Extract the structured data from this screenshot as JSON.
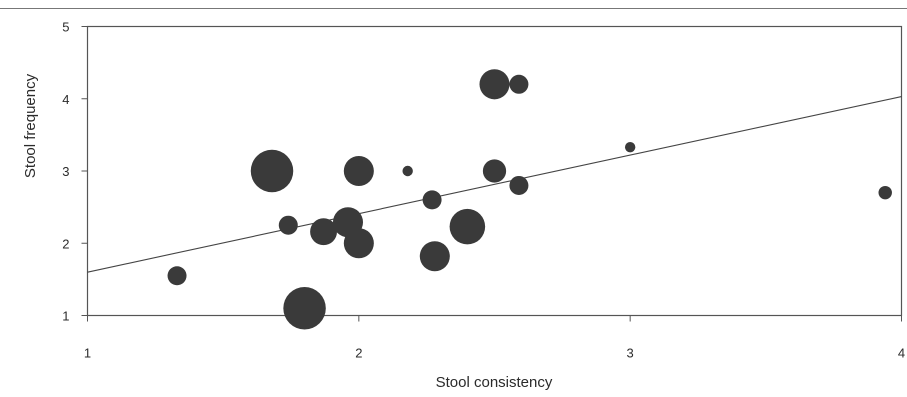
{
  "chart_data": {
    "type": "scatter",
    "subtype": "bubble",
    "xlabel": "Stool consistency",
    "ylabel": "Stool frequency",
    "xlim": [
      1,
      4
    ],
    "ylim": [
      1,
      5
    ],
    "x_ticks": [
      "1",
      "2",
      "3",
      "4"
    ],
    "y_ticks": [
      "1",
      "2",
      "3",
      "4",
      "5"
    ],
    "grid": false,
    "legend": "none",
    "colors": {
      "points": "#3a3a3a",
      "trendline": "#444444",
      "frame": "#555555"
    },
    "trendline": {
      "x": [
        1,
        4
      ],
      "y": [
        1.6,
        4.03
      ]
    },
    "points": [
      {
        "x": 1.33,
        "y": 1.55,
        "size": 1
      },
      {
        "x": 1.68,
        "y": 3.0,
        "size": 5
      },
      {
        "x": 1.74,
        "y": 2.25,
        "size": 1
      },
      {
        "x": 1.8,
        "y": 1.1,
        "size": 5
      },
      {
        "x": 1.87,
        "y": 2.16,
        "size": 2
      },
      {
        "x": 1.96,
        "y": 2.29,
        "size": 2.5
      },
      {
        "x": 2.0,
        "y": 3.0,
        "size": 2.5
      },
      {
        "x": 2.0,
        "y": 2.0,
        "size": 2.5
      },
      {
        "x": 2.18,
        "y": 3.0,
        "size": 0.3
      },
      {
        "x": 2.27,
        "y": 2.6,
        "size": 1
      },
      {
        "x": 2.28,
        "y": 1.82,
        "size": 2.5
      },
      {
        "x": 2.4,
        "y": 2.23,
        "size": 3.5
      },
      {
        "x": 2.5,
        "y": 4.2,
        "size": 2.5
      },
      {
        "x": 2.5,
        "y": 3.0,
        "size": 1.5
      },
      {
        "x": 2.59,
        "y": 4.2,
        "size": 1
      },
      {
        "x": 2.59,
        "y": 2.8,
        "size": 1
      },
      {
        "x": 3.0,
        "y": 3.33,
        "size": 0.3
      },
      {
        "x": 3.94,
        "y": 2.7,
        "size": 0.5
      }
    ]
  }
}
